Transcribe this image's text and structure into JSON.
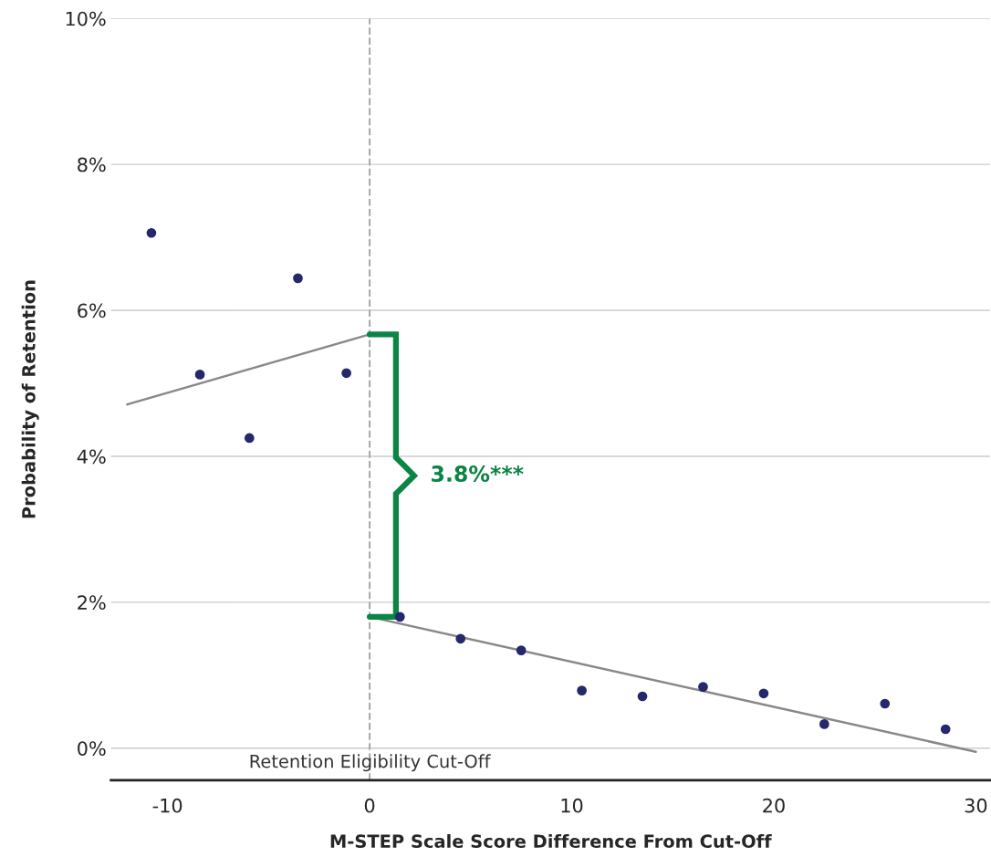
{
  "chart_data": {
    "type": "scatter",
    "xlabel": "M-STEP Scale Score Difference From Cut-Off",
    "ylabel": "Probability of Retention",
    "xlim": [
      -12.8,
      30.7
    ],
    "xticks": [
      -10,
      0,
      10,
      20,
      30
    ],
    "ylim": [
      -0.44,
      10
    ],
    "yticks": [
      {
        "value": 0,
        "label": "0%"
      },
      {
        "value": 2,
        "label": "2%"
      },
      {
        "value": 4,
        "label": "4%"
      },
      {
        "value": 6,
        "label": "6%"
      },
      {
        "value": 8,
        "label": "8%"
      },
      {
        "value": 10,
        "label": "10%"
      }
    ],
    "grid": "y",
    "legend": false,
    "series": [
      {
        "marker": "circle",
        "color": "#25286b",
        "x": [
          -10.8,
          -8.4,
          -5.95,
          -3.55,
          -1.15,
          1.5,
          4.5,
          7.5,
          10.5,
          13.5,
          16.5,
          19.5,
          22.5,
          25.5,
          28.5
        ],
        "values": [
          7.06,
          5.12,
          4.25,
          6.44,
          5.14,
          1.8,
          1.5,
          1.34,
          0.79,
          0.71,
          0.84,
          0.75,
          0.33,
          0.61,
          0.26
        ]
      },
      {
        "type": "line",
        "color": "#888888",
        "x": [
          -12,
          0
        ],
        "values": [
          4.71,
          5.67
        ]
      },
      {
        "type": "line",
        "color": "#888888",
        "x": [
          0,
          30
        ],
        "values": [
          1.8,
          -0.05
        ]
      }
    ],
    "ref_lines": [
      {
        "axis": "x",
        "value": 0,
        "label": "Retention Eligibility Cut-Off",
        "color": "#aaaaaa",
        "line_style": "dashed"
      }
    ],
    "annotations": [
      "3.8%***"
    ]
  }
}
